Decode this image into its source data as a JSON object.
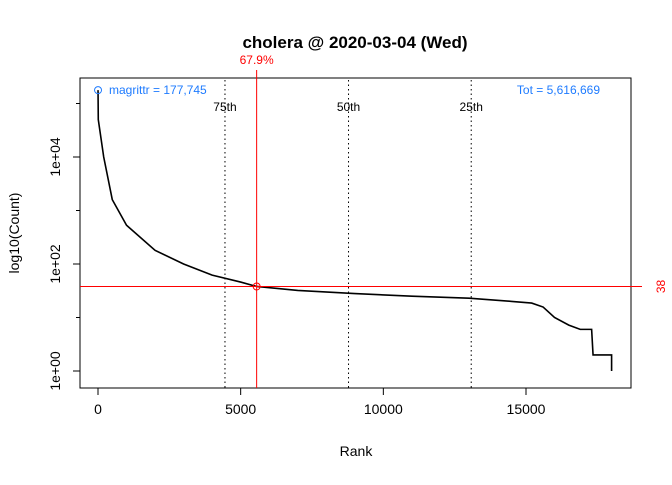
{
  "chart_data": {
    "type": "line",
    "title": "cholera @ 2020-03-04 (Wed)",
    "xlabel": "Rank",
    "ylabel": "log10(Count)",
    "xlim": [
      -600,
      18600
    ],
    "ylog": true,
    "ylim": [
      0.6,
      400000
    ],
    "xticks": [
      0,
      5000,
      10000,
      15000
    ],
    "xtick_labels": [
      "0",
      "5000",
      "10000",
      "15000"
    ],
    "yticks": [
      1,
      100,
      10000
    ],
    "ytick_labels": [
      "1e+00",
      "1e+02",
      "1e+04"
    ],
    "grid": false,
    "series": [
      {
        "x": [
          1,
          10,
          200,
          500,
          1000,
          2000,
          3000,
          4000,
          5000,
          5560,
          7000,
          9000,
          11000,
          13000,
          14500,
          15200,
          15600,
          16000,
          16500,
          16900,
          17300,
          17350,
          18000,
          18000
        ],
        "y": [
          177745,
          50000,
          10000,
          1600,
          530,
          180,
          100,
          62,
          46,
          38,
          32,
          28,
          25,
          23,
          20,
          18.6,
          15.7,
          10,
          7.2,
          6,
          6,
          2,
          2,
          1
        ],
        "color": "#000000"
      }
    ],
    "top_point": {
      "x": 1,
      "y": 177745,
      "label": "magrittr = 177,745",
      "color": "#1E7BFF"
    },
    "total_label": "Tot =  5,616,669",
    "quantiles": [
      {
        "label": "75th",
        "x": 4450
      },
      {
        "label": "50th",
        "x": 8780
      },
      {
        "label": "25th",
        "x": 13080
      }
    ],
    "marker": {
      "x": 5560,
      "y": 38,
      "percent_label": "67.9%",
      "count_label": "38",
      "color": "#FF0000"
    }
  }
}
